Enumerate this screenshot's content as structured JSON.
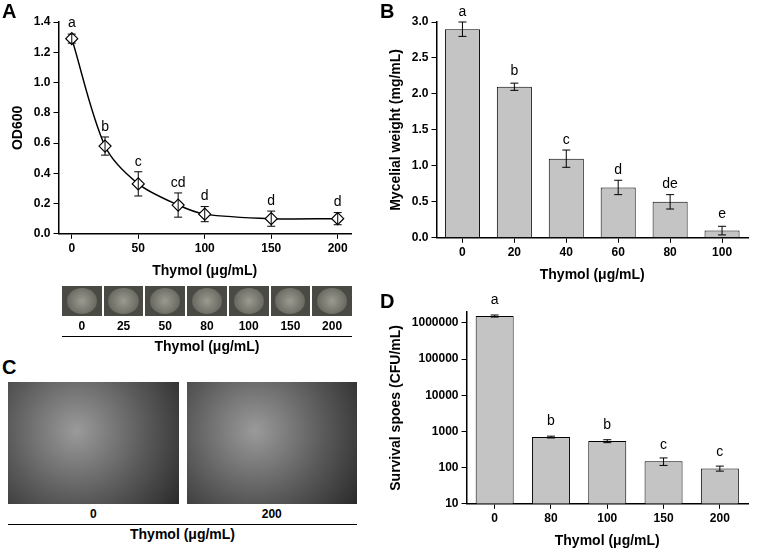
{
  "chart_data": [
    {
      "panel": "A",
      "type": "line",
      "x": [
        0,
        25,
        50,
        80,
        100,
        150,
        200
      ],
      "values": [
        1.29,
        0.58,
        0.33,
        0.19,
        0.13,
        0.1,
        0.1
      ],
      "errors": [
        0.03,
        0.06,
        0.08,
        0.08,
        0.05,
        0.05,
        0.04
      ],
      "annotations": [
        "a",
        "b",
        "c",
        "cd",
        "d",
        "d",
        "d"
      ],
      "color": "#000000",
      "marker": "diamond",
      "line_style": "solid",
      "x_label": "Thymol (μg/mL)",
      "y_label": "OD600",
      "xlim": [
        -10,
        210
      ],
      "xticks": [
        0,
        50,
        100,
        150,
        200
      ],
      "ylim": [
        0,
        1.4
      ],
      "yticks": [
        {
          "value": 0,
          "label": "0.0"
        },
        0.2,
        0.4,
        0.6,
        0.8,
        {
          "value": 1,
          "label": "1.0"
        },
        1.2,
        1.4
      ],
      "grid": false
    },
    {
      "panel": "B",
      "type": "bar",
      "categories": [
        "0",
        "20",
        "40",
        "60",
        "80",
        "100"
      ],
      "values": [
        2.9,
        2.1,
        1.1,
        0.7,
        0.5,
        0.1
      ],
      "errors": [
        0.1,
        0.05,
        0.12,
        0.1,
        0.1,
        0.06
      ],
      "annotations": [
        "a",
        "b",
        "c",
        "d",
        "de",
        "e"
      ],
      "color": "#c4c4c4",
      "x_label": "Thymol (μg/mL)",
      "y_label": "Mycelial weight (mg/mL)",
      "ylim": [
        0,
        3
      ],
      "yticks": [
        {
          "value": 0,
          "label": "0.0"
        },
        0.5,
        {
          "value": 1,
          "label": "1.0"
        },
        1.5,
        {
          "value": 2,
          "label": "2.0"
        },
        2.5,
        {
          "value": 3,
          "label": "3.0"
        }
      ],
      "grid": false
    },
    {
      "panel": "D",
      "type": "bar",
      "categories": [
        "0",
        "80",
        "100",
        "150",
        "200"
      ],
      "values": [
        1550000,
        700,
        540,
        150,
        95
      ],
      "errors": [
        100000,
        40,
        50,
        35,
        15
      ],
      "annotations": [
        "a",
        "b",
        "b",
        "c",
        "c"
      ],
      "color": "#c4c4c4",
      "log": "y",
      "x_label": "Thymol (μg/mL)",
      "y_label": "Survival spoes (CFU/mL)",
      "ylim": [
        10,
        2000000
      ],
      "yticks": [
        10,
        100,
        1000,
        10000,
        100000,
        1000000
      ],
      "grid": false
    }
  ],
  "image_strips": [
    {
      "panel": "A",
      "labels": [
        "0",
        "25",
        "50",
        "80",
        "100",
        "150",
        "200"
      ],
      "x_label": "Thymol (μg/mL)"
    },
    {
      "panel": "C",
      "labels": [
        "0",
        "200"
      ],
      "x_label": "Thymol (μg/mL)"
    }
  ]
}
